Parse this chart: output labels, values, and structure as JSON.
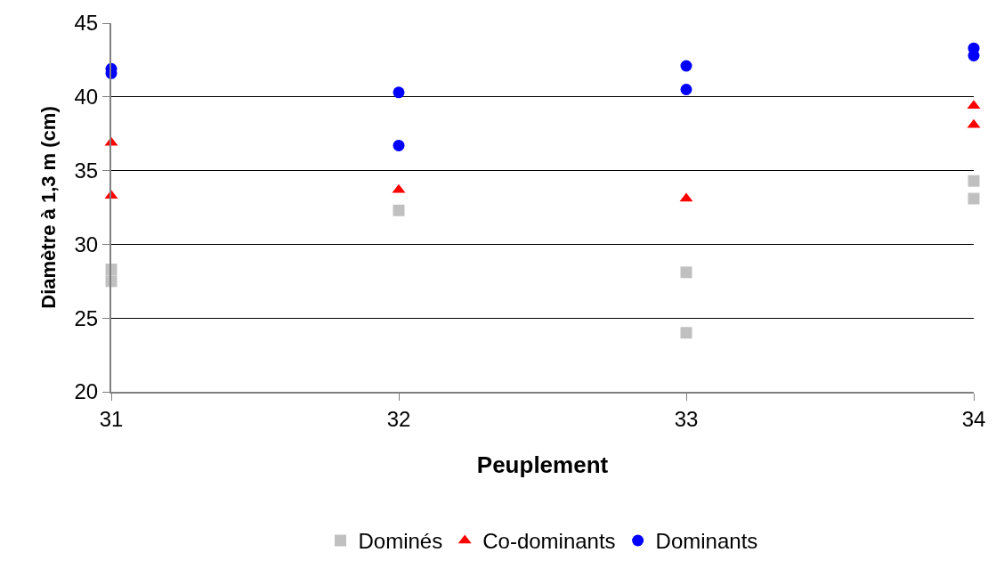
{
  "chart_data": {
    "type": "scatter",
    "xlabel": "Peuplement",
    "ylabel": "Diamètre à 1,3 m (cm)",
    "xlim": [
      31,
      34
    ],
    "xticks": [
      31,
      32,
      33,
      34
    ],
    "ylim": [
      20,
      45
    ],
    "yticks": [
      20,
      25,
      30,
      35,
      40,
      45
    ],
    "grid": "y",
    "legend": "bottom",
    "series": [
      {
        "name": "Dominés",
        "color": "#c0c0c0",
        "marker": "square",
        "x": [
          31,
          31,
          32,
          33,
          33,
          34,
          34
        ],
        "values": [
          28.3,
          27.5,
          32.3,
          28.1,
          24.0,
          34.3,
          33.1
        ]
      },
      {
        "name": "Co-dominants",
        "color": "#ff0000",
        "marker": "triangle",
        "x": [
          31,
          31,
          32,
          33,
          34,
          34
        ],
        "values": [
          36.9,
          33.3,
          33.7,
          33.1,
          39.4,
          38.1
        ]
      },
      {
        "name": "Dominants",
        "color": "#0000ff",
        "marker": "circle",
        "x": [
          31,
          31,
          32,
          32,
          33,
          33,
          34,
          34
        ],
        "values": [
          41.9,
          41.6,
          40.3,
          36.7,
          42.1,
          40.5,
          43.3,
          42.8
        ]
      }
    ]
  }
}
